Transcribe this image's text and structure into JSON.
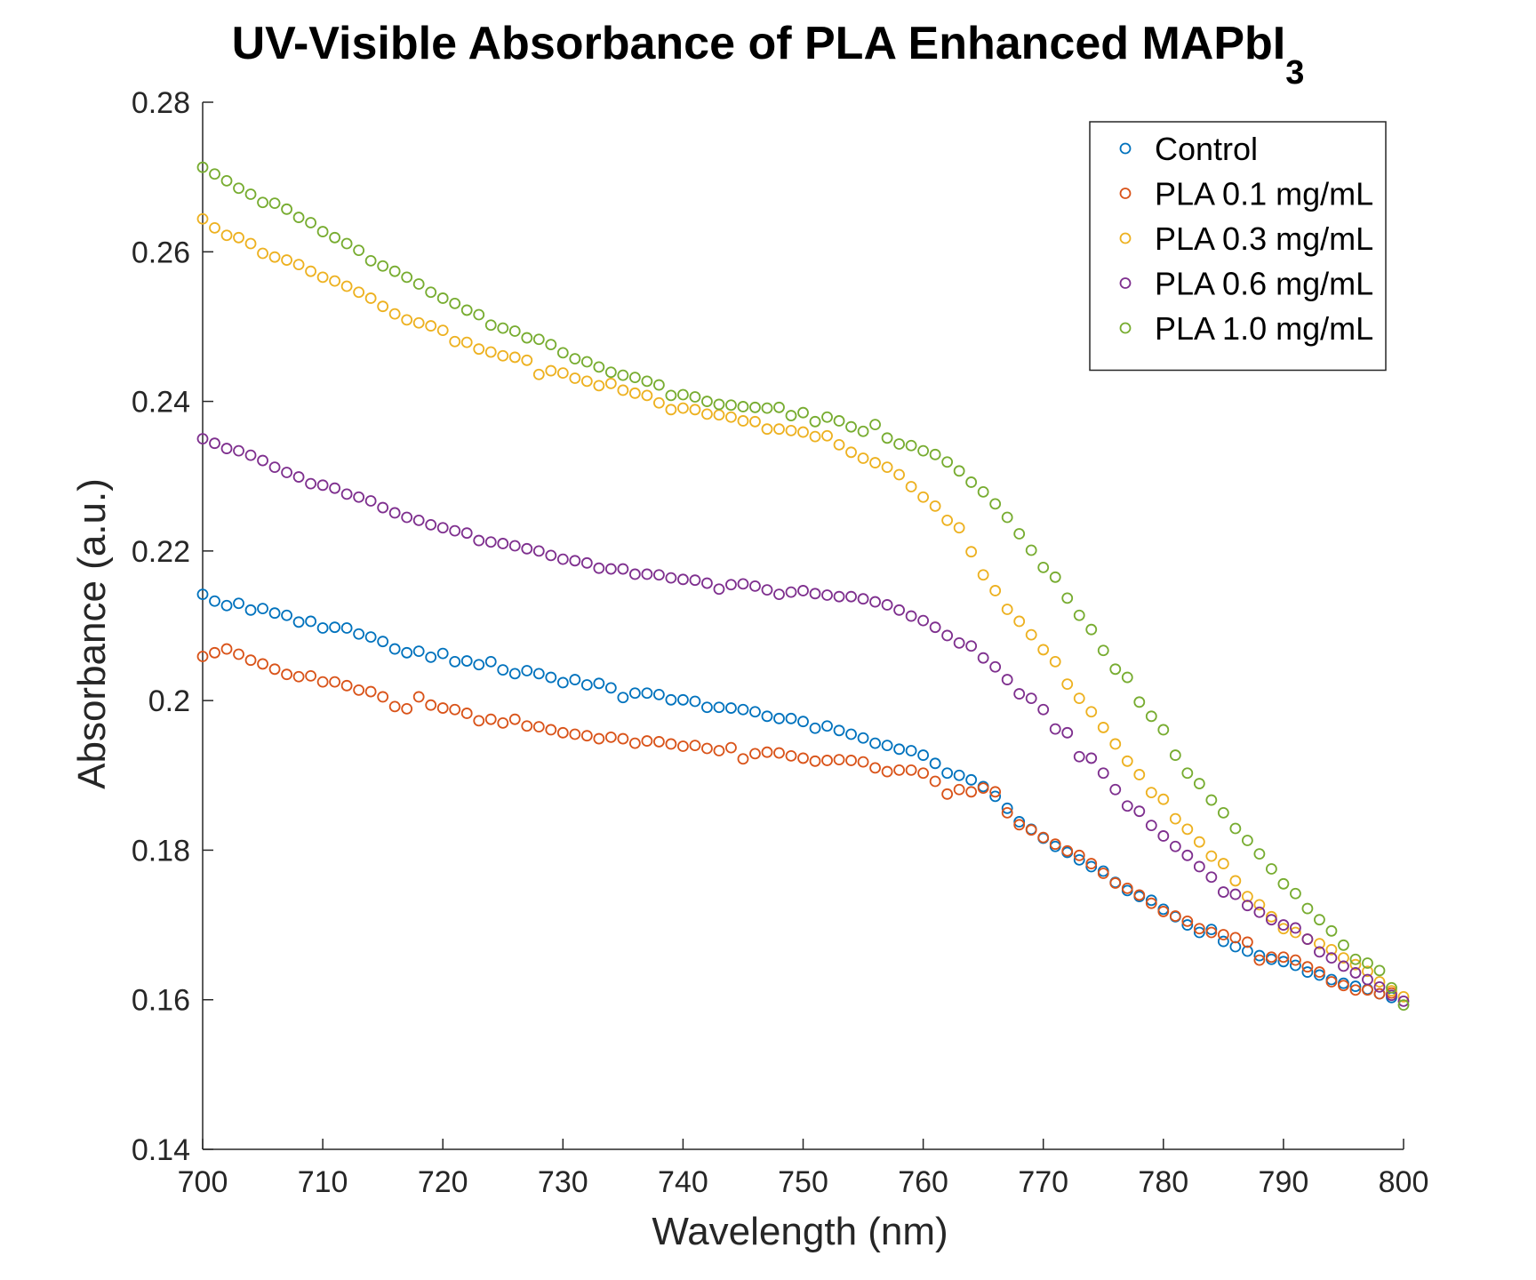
{
  "chart_data": {
    "type": "scatter",
    "title": "UV-Visible Absorbance of PLA Enhanced MAPbI",
    "title_subscript": "3",
    "xlabel": "Wavelength (nm)",
    "ylabel": "Absorbance (a.u.)",
    "xlim": [
      700,
      800
    ],
    "ylim": [
      0.14,
      0.28
    ],
    "x_ticks": [
      700,
      710,
      720,
      730,
      740,
      750,
      760,
      770,
      780,
      790,
      800
    ],
    "x_tick_labels": [
      "700",
      "710",
      "720",
      "730",
      "740",
      "750",
      "760",
      "770",
      "780",
      "790",
      "800"
    ],
    "y_ticks": [
      0.14,
      0.16,
      0.18,
      0.2,
      0.22,
      0.24,
      0.26,
      0.28
    ],
    "y_tick_labels": [
      "0.14",
      "0.16",
      "0.18",
      "0.2",
      "0.22",
      "0.24",
      "0.26",
      "0.28"
    ],
    "grid": false,
    "legend_position": "top-right",
    "x": [
      700,
      701,
      702,
      703,
      704,
      705,
      706,
      707,
      708,
      709,
      710,
      711,
      712,
      713,
      714,
      715,
      716,
      717,
      718,
      719,
      720,
      721,
      722,
      723,
      724,
      725,
      726,
      727,
      728,
      729,
      730,
      731,
      732,
      733,
      734,
      735,
      736,
      737,
      738,
      739,
      740,
      741,
      742,
      743,
      744,
      745,
      746,
      747,
      748,
      749,
      750,
      751,
      752,
      753,
      754,
      755,
      756,
      757,
      758,
      759,
      760,
      761,
      762,
      763,
      764,
      765,
      766,
      767,
      768,
      769,
      770,
      771,
      772,
      773,
      774,
      775,
      776,
      777,
      778,
      779,
      780,
      781,
      782,
      783,
      784,
      785,
      786,
      787,
      788,
      789,
      790,
      791,
      792,
      793,
      794,
      795,
      796,
      797,
      798,
      799,
      800
    ],
    "series": [
      {
        "name": "Control",
        "color": "#0072BD",
        "values": [
          0.2142,
          0.2133,
          0.2127,
          0.213,
          0.2121,
          0.2123,
          0.2117,
          0.2114,
          0.2105,
          0.2106,
          0.2097,
          0.2098,
          0.2097,
          0.2089,
          0.2085,
          0.2079,
          0.2069,
          0.2064,
          0.2066,
          0.2058,
          0.2063,
          0.2052,
          0.2053,
          0.2048,
          0.2052,
          0.2041,
          0.2036,
          0.204,
          0.2036,
          0.2031,
          0.2024,
          0.2028,
          0.2021,
          0.2023,
          0.2017,
          0.2004,
          0.201,
          0.201,
          0.2008,
          0.2001,
          0.2001,
          0.1999,
          0.1991,
          0.1991,
          0.199,
          0.1988,
          0.1985,
          0.1979,
          0.1976,
          0.1976,
          0.1972,
          0.1963,
          0.1966,
          0.196,
          0.1955,
          0.195,
          0.1943,
          0.194,
          0.1935,
          0.1933,
          0.1927,
          0.1916,
          0.1903,
          0.19,
          0.1894,
          0.1885,
          0.1872,
          0.1856,
          0.1838,
          0.1828,
          0.1816,
          0.1805,
          0.1797,
          0.1787,
          0.1778,
          0.1772,
          0.1757,
          0.1746,
          0.1738,
          0.1733,
          0.1721,
          0.1711,
          0.17,
          0.169,
          0.1694,
          0.1678,
          0.1671,
          0.1665,
          0.1659,
          0.1654,
          0.1651,
          0.1646,
          0.1637,
          0.1633,
          0.1627,
          0.1622,
          0.1618,
          0.1614,
          0.1608,
          0.1603,
          null
        ]
      },
      {
        "name": "PLA 0.1 mg/mL",
        "color": "#D95319",
        "values": [
          0.2059,
          0.2064,
          0.2069,
          0.2062,
          0.2054,
          0.2049,
          0.2042,
          0.2035,
          0.2032,
          0.2033,
          0.2025,
          0.2025,
          0.202,
          0.2014,
          0.2012,
          0.2005,
          0.1992,
          0.1989,
          0.2005,
          0.1994,
          0.199,
          0.1988,
          0.1983,
          0.1973,
          0.1975,
          0.197,
          0.1975,
          0.1966,
          0.1965,
          0.1961,
          0.1957,
          0.1955,
          0.1953,
          0.1949,
          0.1951,
          0.1949,
          0.1943,
          0.1946,
          0.1945,
          0.1942,
          0.1939,
          0.194,
          0.1936,
          0.1933,
          0.1937,
          0.1922,
          0.1929,
          0.1931,
          0.193,
          0.1926,
          0.1923,
          0.1919,
          0.192,
          0.1921,
          0.192,
          0.1918,
          0.191,
          0.1905,
          0.1907,
          0.1907,
          0.1903,
          0.1892,
          0.1875,
          0.1881,
          0.1878,
          0.1883,
          0.1878,
          0.185,
          0.1834,
          0.1827,
          0.1817,
          0.1808,
          0.1799,
          0.1793,
          0.1782,
          0.1769,
          0.1756,
          0.1749,
          0.174,
          0.1729,
          0.1718,
          0.1712,
          0.1705,
          0.1695,
          0.169,
          0.1687,
          0.1683,
          0.1677,
          0.1653,
          0.1657,
          0.1657,
          0.1653,
          0.1644,
          0.1637,
          0.1624,
          0.1619,
          0.1613,
          0.1613,
          0.1608,
          0.1609,
          null
        ]
      },
      {
        "name": "PLA 0.3 mg/mL",
        "color": "#EDB120",
        "values": [
          0.2644,
          0.2632,
          0.2622,
          0.2619,
          0.2611,
          0.2598,
          0.2593,
          0.2589,
          0.2583,
          0.2574,
          0.2566,
          0.2561,
          0.2554,
          0.2546,
          0.2538,
          0.2527,
          0.2517,
          0.2509,
          0.2505,
          0.2501,
          0.2495,
          0.248,
          0.2479,
          0.247,
          0.2466,
          0.2461,
          0.2459,
          0.2455,
          0.2436,
          0.2441,
          0.2438,
          0.2431,
          0.2427,
          0.2421,
          0.2424,
          0.2415,
          0.2411,
          0.2408,
          0.2398,
          0.2389,
          0.2391,
          0.2389,
          0.2383,
          0.2382,
          0.2379,
          0.2374,
          0.2373,
          0.2363,
          0.2363,
          0.2361,
          0.2359,
          0.2353,
          0.2354,
          0.2342,
          0.2332,
          0.2324,
          0.2318,
          0.2312,
          0.2302,
          0.2286,
          0.2272,
          0.226,
          0.2241,
          0.2231,
          0.2199,
          0.2168,
          0.2147,
          0.2122,
          0.2106,
          0.2088,
          0.2068,
          0.2052,
          0.2022,
          0.2003,
          0.1985,
          0.1964,
          0.1942,
          0.1919,
          0.1901,
          0.1877,
          0.1868,
          0.1842,
          0.1828,
          0.1811,
          0.1792,
          0.1782,
          0.1759,
          0.1738,
          0.1727,
          0.1711,
          0.1695,
          0.169,
          0.1681,
          0.1675,
          0.1667,
          0.1656,
          0.1647,
          0.1638,
          0.1624,
          0.1612,
          0.1604
        ]
      },
      {
        "name": "PLA 0.6 mg/mL",
        "color": "#7E2F8E",
        "values": [
          0.235,
          0.2344,
          0.2337,
          0.2334,
          0.2328,
          0.2321,
          0.2312,
          0.2305,
          0.2299,
          0.229,
          0.2288,
          0.2284,
          0.2276,
          0.2272,
          0.2267,
          0.2258,
          0.2251,
          0.2245,
          0.2241,
          0.2235,
          0.2231,
          0.2227,
          0.2224,
          0.2214,
          0.2212,
          0.221,
          0.2207,
          0.2203,
          0.22,
          0.2194,
          0.2189,
          0.2187,
          0.2184,
          0.2177,
          0.2176,
          0.2176,
          0.2169,
          0.2169,
          0.2168,
          0.2164,
          0.2162,
          0.2161,
          0.2157,
          0.2149,
          0.2155,
          0.2156,
          0.2153,
          0.2148,
          0.2142,
          0.2145,
          0.2147,
          0.2143,
          0.2141,
          0.2139,
          0.2139,
          0.2136,
          0.2132,
          0.2128,
          0.2121,
          0.2113,
          0.2107,
          0.2098,
          0.2087,
          0.2077,
          0.2073,
          0.2057,
          0.2045,
          0.2028,
          0.2009,
          0.2003,
          0.1988,
          0.1962,
          0.1957,
          0.1925,
          0.1923,
          0.1903,
          0.1881,
          0.1859,
          0.1852,
          0.1833,
          0.1819,
          0.1805,
          0.1793,
          0.1778,
          0.1764,
          0.1744,
          0.1741,
          0.1726,
          0.1717,
          0.1707,
          0.17,
          0.1696,
          0.1681,
          0.1664,
          0.1656,
          0.1645,
          0.1636,
          0.1627,
          0.1617,
          0.1606,
          0.1598
        ]
      },
      {
        "name": "PLA 1.0 mg/mL",
        "color": "#77AC30",
        "values": [
          0.2713,
          0.2704,
          0.2695,
          0.2685,
          0.2677,
          0.2666,
          0.2665,
          0.2657,
          0.2646,
          0.2639,
          0.2627,
          0.2619,
          0.2611,
          0.2602,
          0.2588,
          0.2581,
          0.2574,
          0.2566,
          0.2557,
          0.2546,
          0.2538,
          0.2531,
          0.2522,
          0.2516,
          0.2502,
          0.2498,
          0.2494,
          0.2485,
          0.2483,
          0.2476,
          0.2465,
          0.2457,
          0.2453,
          0.2446,
          0.2439,
          0.2435,
          0.2432,
          0.2427,
          0.2422,
          0.2408,
          0.2409,
          0.2406,
          0.24,
          0.2396,
          0.2395,
          0.2393,
          0.2392,
          0.2391,
          0.2392,
          0.2381,
          0.2385,
          0.2373,
          0.2379,
          0.2374,
          0.2366,
          0.236,
          0.2369,
          0.2351,
          0.2343,
          0.2341,
          0.2334,
          0.2329,
          0.2319,
          0.2307,
          0.2292,
          0.2279,
          0.2263,
          0.2245,
          0.2223,
          0.2201,
          0.2178,
          0.2165,
          0.2137,
          0.2114,
          0.2095,
          0.2067,
          0.2042,
          0.2031,
          0.1998,
          0.1979,
          0.1961,
          0.1927,
          0.1903,
          0.1889,
          0.1867,
          0.185,
          0.1829,
          0.1813,
          0.1795,
          0.1775,
          0.1755,
          0.1742,
          0.1722,
          0.1707,
          0.1692,
          0.1673,
          0.1654,
          0.1649,
          0.1639,
          0.1616,
          0.1593
        ]
      }
    ]
  }
}
